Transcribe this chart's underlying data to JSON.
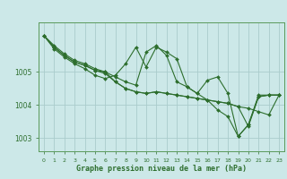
{
  "background_color": "#cce8e8",
  "grid_color": "#aacccc",
  "line_color": "#2d6e2d",
  "marker_color": "#2d6e2d",
  "title": "Graphe pression niveau de la mer (hPa)",
  "ylabel_vals": [
    1003,
    1004,
    1005
  ],
  "xlim": [
    -0.5,
    23.5
  ],
  "ylim": [
    1002.6,
    1006.5
  ],
  "series": [
    [
      1006.1,
      1005.8,
      1005.55,
      1005.35,
      1005.25,
      1005.1,
      1005.0,
      1004.85,
      1004.7,
      1004.6,
      1005.6,
      1005.8,
      1005.5,
      1004.7,
      1004.55,
      1004.35,
      1004.15,
      1003.85,
      1003.65,
      1003.05,
      1003.4,
      1004.3,
      1004.3,
      1004.3
    ],
    [
      1006.1,
      1005.7,
      1005.45,
      1005.25,
      1005.1,
      1004.9,
      1004.8,
      1004.9,
      1005.25,
      1005.75,
      1005.15,
      1005.75,
      1005.6,
      1005.4,
      1004.55,
      1004.35,
      1004.75,
      1004.85,
      1004.35,
      1003.05,
      1003.4,
      1004.25,
      1004.3,
      1004.3
    ],
    [
      1006.1,
      1005.75,
      1005.5,
      1005.3,
      1005.2,
      1005.05,
      1004.95,
      1004.7,
      1004.5,
      1004.4,
      1004.35,
      1004.4,
      1004.35,
      1004.3,
      1004.25,
      1004.2,
      1004.15,
      1004.1,
      1004.05,
      1003.95,
      1003.9,
      1003.8,
      1003.7,
      1004.3
    ],
    [
      1006.1,
      1005.75,
      1005.5,
      1005.3,
      1005.2,
      1005.05,
      1005.0,
      1004.7,
      1004.5,
      1004.4,
      1004.35,
      1004.4,
      1004.35,
      1004.3,
      1004.25,
      1004.2,
      1004.15,
      1004.1,
      1004.05,
      1003.95,
      1003.35,
      1004.25,
      1004.3,
      1004.3
    ]
  ]
}
